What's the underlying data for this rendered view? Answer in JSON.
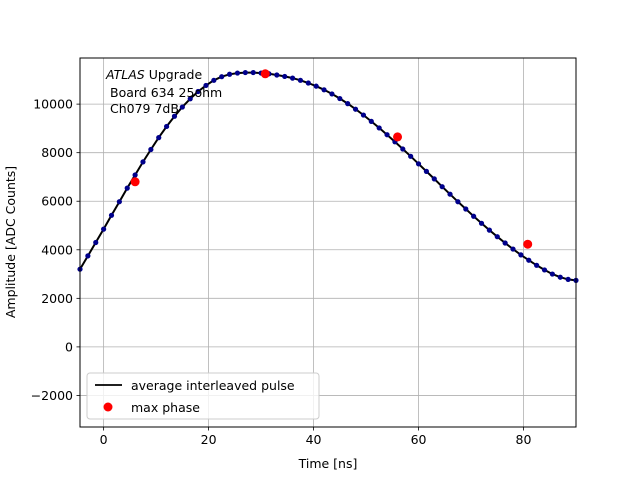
{
  "chart_data": {
    "type": "scatter",
    "xlabel": "Time [ns]",
    "ylabel": "Amplitude [ADC Counts]",
    "xlim": [
      -4.5,
      90
    ],
    "ylim": [
      -3300,
      11900
    ],
    "xticks": [
      0,
      20,
      40,
      60,
      80
    ],
    "yticks": [
      -2000,
      0,
      2000,
      4000,
      6000,
      8000,
      10000
    ],
    "grid": true,
    "legend_position": "lower left",
    "annotation": {
      "line1_italic": "ATLAS",
      "line1_rest": " Upgrade",
      "line2": "Board 634 25ohm",
      "line3": "Ch079 7dB"
    },
    "legend": [
      {
        "label": "average interleaved pulse",
        "marker": "line",
        "color": "#000000"
      },
      {
        "label": "max phase",
        "marker": "dot",
        "color": "#ff0000"
      }
    ],
    "series": [
      {
        "name": "average interleaved pulse",
        "color": "#000000",
        "marker_color": "#00008b",
        "x": [
          -4.5,
          -3,
          -1.5,
          0,
          1.5,
          3,
          4.5,
          6,
          7.5,
          9,
          10.5,
          12,
          13.5,
          15,
          16.5,
          18,
          19.5,
          21,
          22.5,
          24,
          25.5,
          27,
          28.5,
          30,
          31.5,
          33,
          34.5,
          36,
          37.5,
          39,
          40.5,
          42,
          43.5,
          45,
          46.5,
          48,
          49.5,
          51,
          52.5,
          54,
          55.5,
          57,
          58.5,
          60,
          61.5,
          63,
          64.5,
          66,
          67.5,
          69,
          70.5,
          72,
          73.5,
          75,
          76.5,
          78,
          79.5,
          81,
          82.5,
          84,
          85.5,
          87,
          88.5,
          90
        ],
        "y": [
          3200,
          3750,
          4300,
          4850,
          5420,
          5980,
          6540,
          7080,
          7620,
          8130,
          8620,
          9080,
          9500,
          9880,
          10220,
          10520,
          10770,
          10980,
          11130,
          11230,
          11280,
          11300,
          11300,
          11280,
          11250,
          11200,
          11140,
          11070,
          10980,
          10870,
          10740,
          10590,
          10420,
          10230,
          10020,
          9790,
          9550,
          9290,
          9020,
          8740,
          8450,
          8150,
          7850,
          7540,
          7230,
          6920,
          6600,
          6290,
          5980,
          5680,
          5380,
          5090,
          4810,
          4540,
          4280,
          4030,
          3790,
          3570,
          3360,
          3170,
          3000,
          2870,
          2780,
          2740
        ]
      },
      {
        "name": "max phase",
        "color": "#ff0000",
        "x": [
          6,
          30.8,
          56,
          80.8
        ],
        "y": [
          6800,
          11250,
          8650,
          4230
        ]
      }
    ]
  }
}
